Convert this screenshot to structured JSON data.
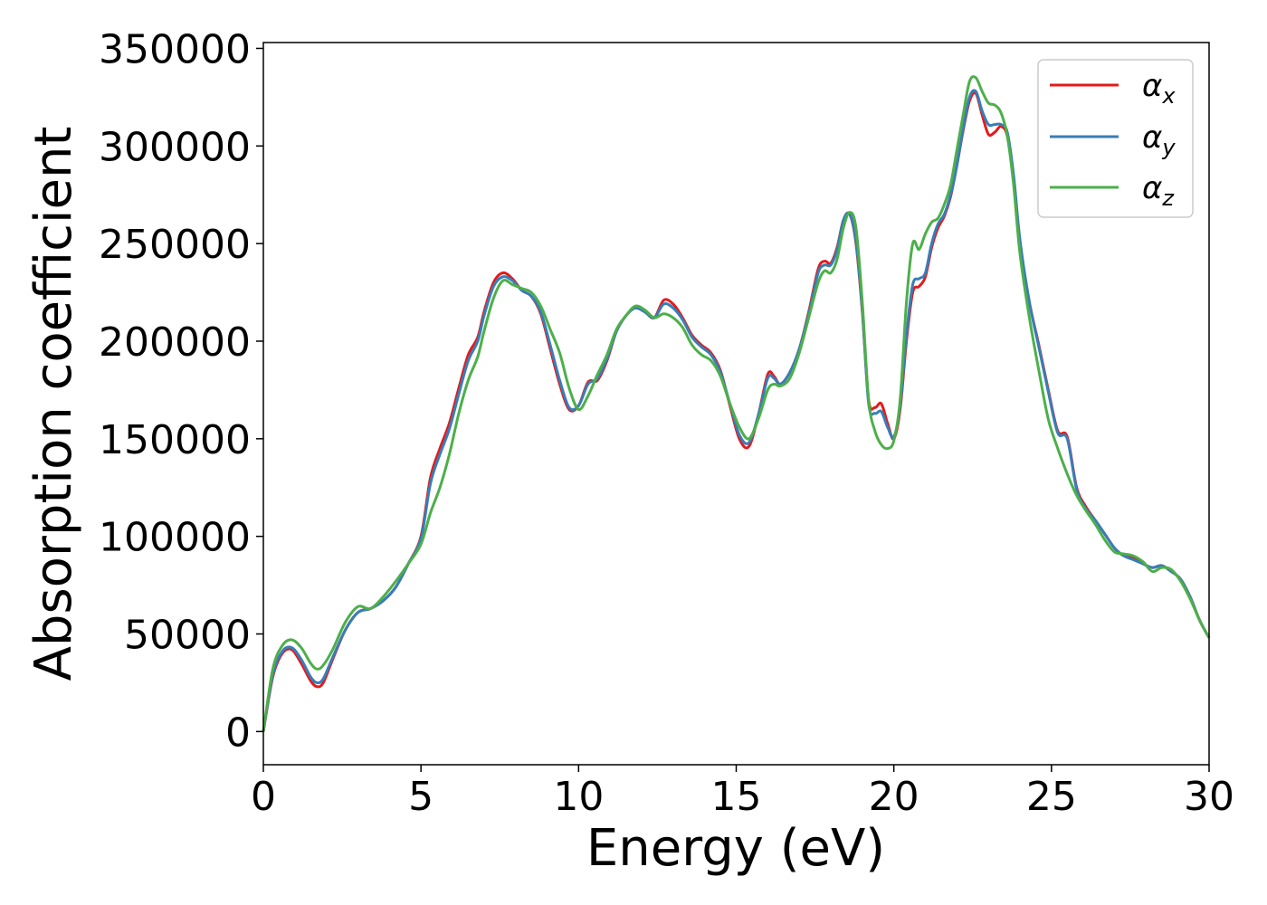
{
  "chart_data": {
    "type": "line",
    "title": "",
    "xlabel": "Energy (eV)",
    "ylabel": "Absorption coefficient",
    "xlim": [
      0,
      30
    ],
    "ylim": [
      -17000,
      353000
    ],
    "xticks": [
      0,
      5,
      10,
      15,
      20,
      25,
      30
    ],
    "xtick_labels": [
      "0",
      "5",
      "10",
      "15",
      "20",
      "25",
      "30"
    ],
    "yticks": [
      0,
      50000,
      100000,
      150000,
      200000,
      250000,
      300000,
      350000
    ],
    "ytick_labels": [
      "0",
      "50000",
      "100000",
      "150000",
      "200000",
      "250000",
      "300000",
      "350000"
    ],
    "grid": false,
    "legend_position": "top-right",
    "series": [
      {
        "name": "α",
        "name_sub": "x",
        "color": "#e41a1c",
        "x": [
          0,
          0.3,
          0.6,
          0.9,
          1.2,
          1.5,
          1.7,
          1.9,
          2.2,
          2.6,
          3.0,
          3.4,
          3.8,
          4.2,
          4.6,
          5.0,
          5.3,
          5.6,
          5.9,
          6.2,
          6.5,
          6.8,
          7.0,
          7.3,
          7.6,
          7.9,
          8.2,
          8.5,
          8.8,
          9.1,
          9.4,
          9.7,
          10.0,
          10.3,
          10.6,
          10.9,
          11.2,
          11.5,
          11.8,
          12.1,
          12.4,
          12.7,
          13.0,
          13.3,
          13.6,
          13.9,
          14.2,
          14.5,
          14.8,
          15.1,
          15.4,
          15.7,
          16.0,
          16.2,
          16.4,
          16.7,
          17.0,
          17.3,
          17.6,
          17.8,
          18.0,
          18.2,
          18.4,
          18.6,
          18.8,
          19.0,
          19.2,
          19.4,
          19.6,
          19.8,
          20.0,
          20.2,
          20.4,
          20.6,
          20.8,
          21.0,
          21.2,
          21.4,
          21.6,
          21.8,
          22.0,
          22.2,
          22.4,
          22.6,
          22.8,
          23.0,
          23.2,
          23.4,
          23.6,
          23.8,
          24.0,
          24.3,
          24.6,
          24.9,
          25.2,
          25.5,
          25.8,
          26.1,
          26.4,
          26.7,
          27.0,
          27.3,
          27.6,
          27.9,
          28.2,
          28.5,
          28.8,
          29.1,
          29.4,
          29.7,
          30.0
        ],
        "values": [
          0,
          28000,
          40000,
          42000,
          35000,
          26000,
          23000,
          25000,
          37000,
          52000,
          61000,
          63000,
          67000,
          74000,
          86000,
          100000,
          130000,
          145000,
          158000,
          176000,
          193000,
          202000,
          215000,
          230000,
          235000,
          232000,
          226000,
          223000,
          214000,
          196000,
          178000,
          165000,
          167000,
          179000,
          180000,
          190000,
          205000,
          213000,
          217000,
          215000,
          212000,
          221000,
          219000,
          212000,
          203000,
          198000,
          194000,
          185000,
          167000,
          150000,
          146000,
          162000,
          183000,
          182000,
          178000,
          184000,
          196000,
          215000,
          237000,
          241000,
          240000,
          248000,
          262000,
          265000,
          250000,
          215000,
          170000,
          166000,
          168000,
          158000,
          150000,
          165000,
          200000,
          225000,
          228000,
          233000,
          248000,
          258000,
          264000,
          274000,
          290000,
          308000,
          323000,
          327000,
          316000,
          306000,
          307000,
          310000,
          305000,
          283000,
          250000,
          220000,
          198000,
          175000,
          154000,
          151000,
          125000,
          115000,
          108000,
          101000,
          94000,
          90000,
          89000,
          86000,
          84000,
          85000,
          82000,
          78000,
          69000,
          57000,
          48000
        ]
      },
      {
        "name": "α",
        "name_sub": "y",
        "color": "#377eb8",
        "x": [
          0,
          0.3,
          0.6,
          0.9,
          1.2,
          1.5,
          1.7,
          1.9,
          2.2,
          2.6,
          3.0,
          3.4,
          3.8,
          4.2,
          4.6,
          5.0,
          5.3,
          5.6,
          5.9,
          6.2,
          6.5,
          6.8,
          7.0,
          7.3,
          7.6,
          7.9,
          8.2,
          8.5,
          8.8,
          9.1,
          9.4,
          9.7,
          10.0,
          10.3,
          10.6,
          10.9,
          11.2,
          11.5,
          11.8,
          12.1,
          12.4,
          12.7,
          13.0,
          13.3,
          13.6,
          13.9,
          14.2,
          14.5,
          14.8,
          15.1,
          15.4,
          15.7,
          16.0,
          16.2,
          16.4,
          16.7,
          17.0,
          17.3,
          17.6,
          17.8,
          18.0,
          18.2,
          18.4,
          18.6,
          18.8,
          19.0,
          19.2,
          19.4,
          19.6,
          19.8,
          20.0,
          20.2,
          20.4,
          20.6,
          20.8,
          21.0,
          21.2,
          21.4,
          21.6,
          21.8,
          22.0,
          22.2,
          22.4,
          22.6,
          22.8,
          23.0,
          23.2,
          23.4,
          23.6,
          23.8,
          24.0,
          24.3,
          24.6,
          24.9,
          25.2,
          25.5,
          25.8,
          26.1,
          26.4,
          26.7,
          27.0,
          27.3,
          27.6,
          27.9,
          28.2,
          28.5,
          28.8,
          29.1,
          29.4,
          29.7,
          30.0
        ],
        "values": [
          0,
          29000,
          41000,
          43000,
          37000,
          28000,
          25000,
          27000,
          38000,
          52000,
          61000,
          63000,
          67000,
          74000,
          86000,
          99000,
          127000,
          142000,
          155000,
          173000,
          190000,
          200000,
          213000,
          228000,
          233000,
          231000,
          226000,
          223000,
          215000,
          198000,
          180000,
          166000,
          167000,
          178000,
          181000,
          191000,
          205000,
          213000,
          217000,
          215000,
          212000,
          219000,
          217000,
          211000,
          202000,
          197000,
          193000,
          184000,
          168000,
          152000,
          148000,
          162000,
          181000,
          181000,
          178000,
          184000,
          196000,
          214000,
          235000,
          239000,
          239000,
          247000,
          262000,
          265000,
          251000,
          216000,
          168000,
          163000,
          164000,
          156000,
          151000,
          167000,
          203000,
          229000,
          232000,
          235000,
          250000,
          260000,
          265000,
          275000,
          290000,
          309000,
          325000,
          328000,
          318000,
          311000,
          311000,
          311000,
          307000,
          285000,
          252000,
          220000,
          197000,
          174000,
          153000,
          150000,
          124000,
          114000,
          108000,
          101000,
          94000,
          90000,
          88000,
          86000,
          84000,
          85000,
          82000,
          78000,
          69000,
          57000,
          48000
        ]
      },
      {
        "name": "α",
        "name_sub": "z",
        "color": "#4daf4a",
        "x": [
          0,
          0.3,
          0.6,
          0.9,
          1.2,
          1.5,
          1.7,
          1.9,
          2.2,
          2.6,
          3.0,
          3.4,
          3.8,
          4.2,
          4.6,
          5.0,
          5.3,
          5.6,
          5.9,
          6.2,
          6.5,
          6.8,
          7.0,
          7.3,
          7.6,
          7.9,
          8.2,
          8.5,
          8.8,
          9.1,
          9.4,
          9.7,
          10.0,
          10.3,
          10.6,
          10.9,
          11.2,
          11.5,
          11.8,
          12.1,
          12.4,
          12.7,
          13.0,
          13.3,
          13.6,
          13.9,
          14.2,
          14.5,
          14.8,
          15.1,
          15.4,
          15.7,
          16.0,
          16.2,
          16.4,
          16.7,
          17.0,
          17.3,
          17.6,
          17.8,
          18.0,
          18.2,
          18.4,
          18.6,
          18.8,
          19.0,
          19.2,
          19.4,
          19.6,
          19.8,
          20.0,
          20.2,
          20.4,
          20.6,
          20.8,
          21.0,
          21.2,
          21.4,
          21.6,
          21.8,
          22.0,
          22.2,
          22.4,
          22.6,
          22.8,
          23.0,
          23.2,
          23.4,
          23.6,
          23.8,
          24.0,
          24.3,
          24.6,
          24.9,
          25.2,
          25.5,
          25.8,
          26.1,
          26.4,
          26.7,
          27.0,
          27.3,
          27.6,
          27.9,
          28.2,
          28.5,
          28.8,
          29.1,
          29.4,
          29.7,
          30.0
        ],
        "values": [
          0,
          32000,
          44000,
          47000,
          43000,
          35000,
          32000,
          34000,
          42000,
          56000,
          64000,
          63000,
          69000,
          77000,
          86000,
          96000,
          112000,
          125000,
          142000,
          163000,
          180000,
          192000,
          205000,
          222000,
          231000,
          229000,
          227000,
          225000,
          218000,
          206000,
          194000,
          176000,
          165000,
          172000,
          183000,
          193000,
          206000,
          213000,
          218000,
          216000,
          212000,
          214000,
          212000,
          207000,
          198000,
          193000,
          190000,
          182000,
          168000,
          156000,
          150000,
          160000,
          175000,
          178000,
          177000,
          181000,
          194000,
          212000,
          230000,
          236000,
          235000,
          242000,
          258000,
          266000,
          258000,
          220000,
          170000,
          154000,
          147000,
          145000,
          149000,
          170000,
          220000,
          250000,
          247000,
          255000,
          261000,
          263000,
          270000,
          280000,
          298000,
          316000,
          333000,
          335000,
          328000,
          322000,
          321000,
          317000,
          305000,
          280000,
          245000,
          212000,
          185000,
          160000,
          145000,
          132000,
          121000,
          113000,
          106000,
          98000,
          92000,
          91000,
          90000,
          87000,
          82000,
          84000,
          83000,
          77000,
          68000,
          57000,
          48000
        ]
      }
    ]
  }
}
